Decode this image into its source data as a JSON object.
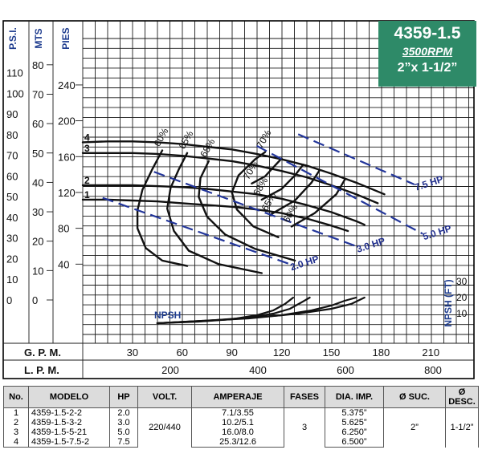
{
  "title": {
    "model": "4359-1.5",
    "rpm": "3500RPM",
    "size": "2”x 1-1/2”",
    "bg_color": "#2e8a68"
  },
  "chart_data": {
    "type": "line",
    "x_axis": {
      "label": "G. P. M.",
      "ticks": [
        30,
        60,
        90,
        120,
        150,
        180,
        210
      ],
      "range": [
        0,
        225
      ]
    },
    "x2_axis": {
      "label": "L. P. M.",
      "ticks": [
        200,
        400,
        600,
        800
      ]
    },
    "y_axes": {
      "psi": {
        "label": "P.S.I.",
        "ticks": [
          0,
          10,
          20,
          30,
          40,
          50,
          60,
          70,
          80,
          90,
          100,
          110
        ]
      },
      "mts": {
        "label": "MTS",
        "ticks": [
          0,
          10,
          20,
          30,
          40,
          50,
          60,
          70,
          80
        ]
      },
      "pies": {
        "label": "PIES",
        "ticks": [
          40,
          80,
          120,
          160,
          200,
          240
        ]
      }
    },
    "head_range_ft": [
      -20,
      300
    ],
    "pump_curves": [
      {
        "name": "1",
        "points": [
          [
            0,
            112
          ],
          [
            15,
            112
          ],
          [
            30,
            111
          ],
          [
            45,
            110
          ],
          [
            60,
            108
          ],
          [
            75,
            106
          ],
          [
            90,
            104
          ],
          [
            105,
            101
          ],
          [
            120,
            97
          ],
          [
            135,
            91
          ],
          [
            150,
            83
          ],
          [
            160,
            77
          ]
        ]
      },
      {
        "name": "2",
        "points": [
          [
            0,
            128
          ],
          [
            15,
            128
          ],
          [
            30,
            128
          ],
          [
            45,
            127
          ],
          [
            60,
            126
          ],
          [
            75,
            124
          ],
          [
            90,
            121
          ],
          [
            105,
            118
          ],
          [
            120,
            113
          ],
          [
            135,
            106
          ],
          [
            150,
            98
          ],
          [
            165,
            88
          ],
          [
            170,
            84
          ]
        ]
      },
      {
        "name": "3",
        "points": [
          [
            0,
            164
          ],
          [
            15,
            164
          ],
          [
            30,
            164
          ],
          [
            45,
            163
          ],
          [
            60,
            161
          ],
          [
            75,
            158
          ],
          [
            90,
            155
          ],
          [
            105,
            150
          ],
          [
            120,
            144
          ],
          [
            135,
            137
          ],
          [
            150,
            128
          ],
          [
            165,
            118
          ],
          [
            178,
            108
          ]
        ]
      },
      {
        "name": "4",
        "points": [
          [
            0,
            176
          ],
          [
            15,
            177
          ],
          [
            30,
            177
          ],
          [
            45,
            176
          ],
          [
            60,
            174
          ],
          [
            75,
            171
          ],
          [
            90,
            168
          ],
          [
            105,
            163
          ],
          [
            120,
            157
          ],
          [
            135,
            150
          ],
          [
            150,
            141
          ],
          [
            165,
            131
          ],
          [
            182,
            118
          ]
        ]
      }
    ],
    "efficiency_curves": [
      {
        "name": "60%",
        "points": [
          [
            63,
            38
          ],
          [
            48,
            44
          ],
          [
            38,
            58
          ],
          [
            33,
            80
          ],
          [
            33,
            100
          ],
          [
            36,
            123
          ],
          [
            42,
            146
          ],
          [
            48,
            167
          ]
        ]
      },
      {
        "name": "65%",
        "points": [
          [
            108,
            30
          ],
          [
            82,
            40
          ],
          [
            64,
            55
          ],
          [
            55,
            77
          ],
          [
            51,
            102
          ],
          [
            53,
            125
          ],
          [
            58,
            146
          ],
          [
            63,
            164
          ]
        ]
      },
      {
        "name": "68%",
        "points": [
          [
            128,
            44
          ],
          [
            104,
            57
          ],
          [
            86,
            73
          ],
          [
            75,
            93
          ],
          [
            70,
            115
          ],
          [
            71,
            136
          ],
          [
            76,
            155
          ]
        ]
      },
      {
        "name": "70%",
        "points": [
          [
            118,
            70
          ],
          [
            103,
            82
          ],
          [
            93,
            101
          ],
          [
            90,
            120
          ],
          [
            94,
            139
          ],
          [
            104,
            157
          ],
          [
            110,
            165
          ]
        ]
      },
      {
        "name": "70%",
        "points": [
          [
            120,
            158
          ],
          [
            115,
            148
          ],
          [
            110,
            138
          ],
          [
            102,
            130
          ]
        ]
      },
      {
        "name": "68%",
        "points": [
          [
            133,
            151
          ],
          [
            128,
            139
          ],
          [
            120,
            124
          ],
          [
            108,
            112
          ]
        ]
      },
      {
        "name": "65%",
        "points": [
          [
            143,
            145
          ],
          [
            138,
            131
          ],
          [
            128,
            111
          ],
          [
            113,
            95
          ]
        ]
      },
      {
        "name": "60%",
        "points": [
          [
            158,
            134
          ],
          [
            153,
            118
          ],
          [
            140,
            97
          ],
          [
            126,
            82
          ]
        ]
      }
    ],
    "hp_lines": [
      {
        "name": "2.0 HP",
        "points": [
          [
            12,
            114
          ],
          [
            125,
            40
          ]
        ]
      },
      {
        "name": "3.0 HP",
        "points": [
          [
            43,
            143
          ],
          [
            165,
            60
          ]
        ]
      },
      {
        "name": "5.0 HP",
        "points": [
          [
            105,
            172
          ],
          [
            205,
            74
          ]
        ]
      },
      {
        "name": "7.5 HP",
        "points": [
          [
            130,
            185
          ],
          [
            200,
            129
          ]
        ]
      }
    ],
    "npsh": {
      "label": "NPSH",
      "axis_label": "NPSH (FT)",
      "ticks": [
        10,
        20,
        30
      ],
      "range_ft": [
        0,
        35
      ],
      "curves": [
        {
          "name": "1",
          "points": [
            [
              45,
              4
            ],
            [
              70,
              5
            ],
            [
              90,
              6.5
            ],
            [
              105,
              9
            ],
            [
              115,
              12
            ],
            [
              122,
              16
            ],
            [
              127,
              20
            ]
          ]
        },
        {
          "name": "2",
          "points": [
            [
              45,
              4
            ],
            [
              75,
              5.5
            ],
            [
              100,
              7.5
            ],
            [
              115,
              10
            ],
            [
              125,
              13
            ],
            [
              132,
              17
            ],
            [
              137,
              20
            ]
          ]
        },
        {
          "name": "3",
          "points": [
            [
              45,
              4
            ],
            [
              90,
              6.5
            ],
            [
              120,
              9
            ],
            [
              138,
              12
            ],
            [
              150,
              15
            ],
            [
              158,
              18
            ],
            [
              165,
              20
            ]
          ]
        },
        {
          "name": "4",
          "points": [
            [
              45,
              4
            ],
            [
              100,
              7
            ],
            [
              130,
              10
            ],
            [
              150,
              13
            ],
            [
              162,
              16
            ],
            [
              170,
              20
            ]
          ]
        }
      ]
    }
  },
  "table": {
    "headers": [
      "No.",
      "MODELO",
      "HP",
      "VOLT.",
      "AMPERAJE",
      "FASES",
      "DIA. IMP.",
      "Ø SUC.",
      "Ø DESC."
    ],
    "rows": [
      {
        "no": "1",
        "modelo": "4359-1.5-2-2",
        "hp": "2.0",
        "amp": "7.1/3.55",
        "dia": "5.375”"
      },
      {
        "no": "2",
        "modelo": "4359-1.5-3-2",
        "hp": "3.0",
        "amp": "10.2/5.1",
        "dia": "5.625”"
      },
      {
        "no": "3",
        "modelo": "4359-1.5-5-21",
        "hp": "5.0",
        "amp": "16.0/8.0",
        "dia": "6.250”"
      },
      {
        "no": "4",
        "modelo": "4359-1.5-7.5-2",
        "hp": "7.5",
        "amp": "25.3/12.6",
        "dia": "6.500”"
      }
    ],
    "volt": "220/440",
    "fases": "3",
    "suc": "2”",
    "desc": "1-1/2”"
  }
}
